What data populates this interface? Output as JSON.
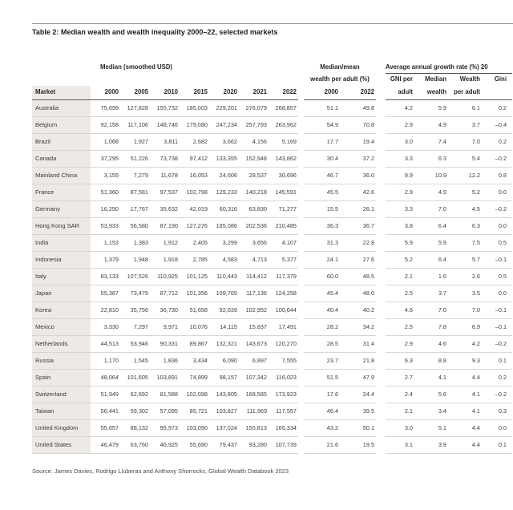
{
  "title": "Table 2: Median wealth and wealth inequality 2000–22, selected markets",
  "source": "Source: James Davies, Rodrigo Lluberas and Anthony Shorrocks, Global Wealth Databook 2023",
  "table": {
    "groups": {
      "median": "Median (smoothed USD)",
      "median_mean_line1": "Median/mean",
      "median_mean_line2": "wealth per adult (%)",
      "growth": "Average annual growth rate (%) 20"
    },
    "market_header": "Market",
    "median_years": [
      "2000",
      "2005",
      "2010",
      "2015",
      "2020",
      "2021",
      "2022"
    ],
    "mm_years": [
      "2000",
      "2022"
    ],
    "growth_cols": [
      [
        "GNI per",
        "adult"
      ],
      [
        "Median",
        "wealth"
      ],
      [
        "Wealth",
        "per adult"
      ],
      [
        "Gini",
        ""
      ]
    ],
    "rows": [
      {
        "market": "Australia",
        "median": [
          "75,699",
          "127,828",
          "155,732",
          "185,003",
          "229,201",
          "276,079",
          "268,857"
        ],
        "mm": [
          "51.1",
          "49.8"
        ],
        "growth": [
          "4.2",
          "5.9",
          "6.1",
          "0.2"
        ]
      },
      {
        "market": "Belgium",
        "median": [
          "92,158",
          "117,106",
          "148,746",
          "179,080",
          "247,234",
          "257,793",
          "263,962"
        ],
        "mm": [
          "54.9",
          "70.8"
        ],
        "growth": [
          "2.9",
          "4.9",
          "3.7",
          "–0.4"
        ]
      },
      {
        "market": "Brazil",
        "median": [
          "1,068",
          "1,927",
          "3,811",
          "2,682",
          "3,662",
          "4,156",
          "5,169"
        ],
        "mm": [
          "17.7",
          "19.4"
        ],
        "growth": [
          "3.0",
          "7.4",
          "7.0",
          "0.2"
        ]
      },
      {
        "market": "Canada",
        "median": [
          "37,295",
          "51,226",
          "73,738",
          "97,412",
          "133,355",
          "152,948",
          "143,862"
        ],
        "mm": [
          "30.4",
          "37.2"
        ],
        "growth": [
          "3.3",
          "6.3",
          "5.4",
          "–0.2"
        ]
      },
      {
        "market": "Mainland China",
        "median": [
          "3,155",
          "7,279",
          "11,678",
          "16,053",
          "24,606",
          "28,537",
          "30,696"
        ],
        "mm": [
          "46.7",
          "36.0"
        ],
        "growth": [
          "9.9",
          "10.9",
          "12.2",
          "0.8"
        ]
      },
      {
        "market": "France",
        "median": [
          "51,360",
          "87,581",
          "97,537",
          "102,798",
          "129,233",
          "140,218",
          "145,591"
        ],
        "mm": [
          "45.5",
          "42.6"
        ],
        "growth": [
          "2.9",
          "4.9",
          "5.2",
          "0.0"
        ]
      },
      {
        "market": "Germany",
        "median": [
          "16,250",
          "17,767",
          "35,632",
          "42,019",
          "60,316",
          "63,830",
          "71,277"
        ],
        "mm": [
          "15.5",
          "26.1"
        ],
        "growth": [
          "3.3",
          "7.0",
          "4.5",
          "–0.2"
        ]
      },
      {
        "market": "Hong Kong SAR",
        "median": [
          "53,933",
          "56,580",
          "87,190",
          "127,276",
          "185,086",
          "202,536",
          "210,485"
        ],
        "mm": [
          "36.3",
          "36.7"
        ],
        "growth": [
          "3.8",
          "6.4",
          "6.3",
          "0.0"
        ]
      },
      {
        "market": "India",
        "median": [
          "1,153",
          "1,383",
          "1,912",
          "2,405",
          "3,299",
          "3,656",
          "4,107"
        ],
        "mm": [
          "31.3",
          "22.8"
        ],
        "growth": [
          "5.9",
          "5.9",
          "7.5",
          "0.5"
        ]
      },
      {
        "market": "Indonesia",
        "median": [
          "1,379",
          "1,948",
          "1,918",
          "2,785",
          "4,583",
          "4,713",
          "5,377"
        ],
        "mm": [
          "24.1",
          "27.6"
        ],
        "growth": [
          "5.2",
          "6.4",
          "5.7",
          "–0.1"
        ]
      },
      {
        "market": "Italy",
        "median": [
          "83,133",
          "107,526",
          "110,925",
          "101,125",
          "110,443",
          "114,412",
          "117,379"
        ],
        "mm": [
          "60.0",
          "48.5"
        ],
        "growth": [
          "2.1",
          "1.6",
          "2.6",
          "0.5"
        ]
      },
      {
        "market": "Japan",
        "median": [
          "55,387",
          "73,479",
          "87,712",
          "101,356",
          "109,765",
          "117,136",
          "124,258"
        ],
        "mm": [
          "45.4",
          "48.0"
        ],
        "growth": [
          "2.5",
          "3.7",
          "3.5",
          "0.0"
        ]
      },
      {
        "market": "Korea",
        "median": [
          "22,810",
          "35,756",
          "36,730",
          "51,658",
          "92,639",
          "102,952",
          "100,644"
        ],
        "mm": [
          "40.4",
          "40.2"
        ],
        "growth": [
          "4.6",
          "7.0",
          "7.0",
          "–0.1"
        ]
      },
      {
        "market": "Mexico",
        "median": [
          "3,330",
          "7,297",
          "9,971",
          "10,076",
          "14,115",
          "15,837",
          "17,491"
        ],
        "mm": [
          "28.2",
          "34.2"
        ],
        "growth": [
          "2.5",
          "7.8",
          "6.9",
          "–0.1"
        ]
      },
      {
        "market": "Netherlands",
        "median": [
          "44,513",
          "53,946",
          "90,331",
          "89,867",
          "132,321",
          "143,673",
          "120,270"
        ],
        "mm": [
          "28.5",
          "31.4"
        ],
        "growth": [
          "2.9",
          "4.6",
          "4.2",
          "–0.2"
        ]
      },
      {
        "market": "Russia",
        "median": [
          "1,170",
          "1,545",
          "1,836",
          "3,434",
          "6,090",
          "6,897",
          "7,555"
        ],
        "mm": [
          "23.7",
          "21.8"
        ],
        "growth": [
          "6.3",
          "8.8",
          "9.3",
          "0.1"
        ]
      },
      {
        "market": "Spain",
        "median": [
          "48,064",
          "101,605",
          "103,891",
          "74,899",
          "98,157",
          "107,342",
          "116,023"
        ],
        "mm": [
          "51.5",
          "47.9"
        ],
        "growth": [
          "2.7",
          "4.1",
          "4.4",
          "0.2"
        ]
      },
      {
        "market": "Switzerland",
        "median": [
          "51,949",
          "62,692",
          "81,588",
          "102,098",
          "143,805",
          "168,585",
          "173,923"
        ],
        "mm": [
          "17.6",
          "24.4"
        ],
        "growth": [
          "2.4",
          "5.6",
          "4.1",
          "–0.2"
        ]
      },
      {
        "market": "Taiwan",
        "median": [
          "56,441",
          "59,302",
          "57,095",
          "85,721",
          "103,827",
          "111,969",
          "117,557"
        ],
        "mm": [
          "46.4",
          "39.5"
        ],
        "growth": [
          "2.1",
          "3.4",
          "4.1",
          "0.3"
        ]
      },
      {
        "market": "United Kingdom",
        "median": [
          "55,657",
          "88,132",
          "95,973",
          "103,090",
          "137,024",
          "155,813",
          "165,334"
        ],
        "mm": [
          "43.2",
          "50.1"
        ],
        "growth": [
          "3.0",
          "5.1",
          "4.4",
          "0.0"
        ]
      },
      {
        "market": "United States",
        "median": [
          "46,479",
          "63,760",
          "46,925",
          "55,690",
          "79,437",
          "93,280",
          "107,739"
        ],
        "mm": [
          "21.6",
          "19.5"
        ],
        "growth": [
          "3.1",
          "3.9",
          "4.4",
          "0.1"
        ]
      }
    ]
  }
}
